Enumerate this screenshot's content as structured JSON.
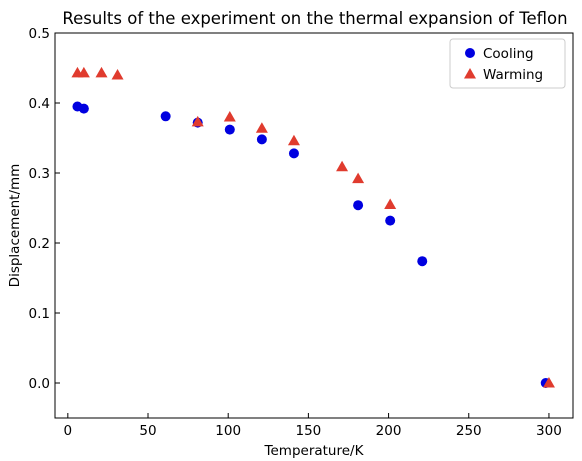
{
  "chart_data": {
    "type": "scatter",
    "title": "Results of the experiment on the thermal expansion of Teflon",
    "xlabel": "Temperature/K",
    "ylabel": "Displacement/mm",
    "xlim": [
      -8,
      315
    ],
    "ylim": [
      -0.05,
      0.5
    ],
    "x_ticks": [
      0,
      50,
      100,
      150,
      200,
      250,
      300
    ],
    "y_ticks": [
      0.0,
      0.1,
      0.2,
      0.3,
      0.4,
      0.5
    ],
    "x_tick_labels": [
      "0",
      "50",
      "100",
      "150",
      "200",
      "250",
      "300"
    ],
    "y_tick_labels": [
      "0.0",
      "0.1",
      "0.2",
      "0.3",
      "0.4",
      "0.5"
    ],
    "grid": false,
    "legend_position": "top-right",
    "series": [
      {
        "name": "Cooling",
        "marker": "circle",
        "color": "#0000e0",
        "x": [
          6,
          10,
          61,
          81,
          101,
          121,
          141,
          181,
          201,
          221,
          298
        ],
        "y": [
          0.395,
          0.392,
          0.381,
          0.372,
          0.362,
          0.348,
          0.328,
          0.254,
          0.232,
          0.174,
          0.0
        ]
      },
      {
        "name": "Warming",
        "marker": "triangle",
        "color": "#e03b2e",
        "x": [
          6,
          10,
          21,
          31,
          81,
          101,
          121,
          141,
          171,
          181,
          201,
          300
        ],
        "y": [
          0.443,
          0.443,
          0.443,
          0.44,
          0.373,
          0.38,
          0.364,
          0.346,
          0.309,
          0.292,
          0.255,
          0.0
        ]
      }
    ]
  }
}
